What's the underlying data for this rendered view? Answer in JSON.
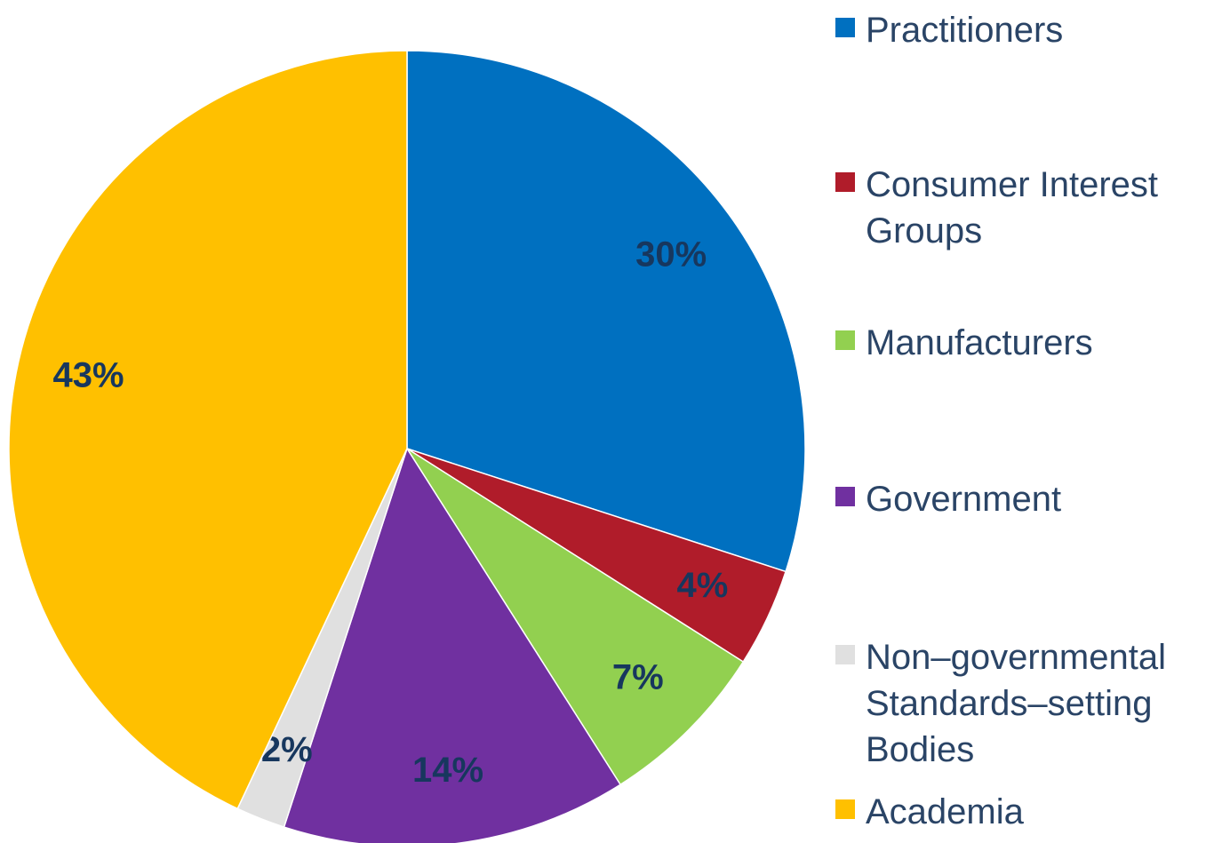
{
  "chart_data": {
    "type": "pie",
    "categories": [
      "Practitioners",
      "Consumer Interest Groups",
      "Manufacturers",
      "Government",
      "Non–governmental Standards–setting Bodies",
      "Academia"
    ],
    "values": [
      30,
      4,
      7,
      14,
      2,
      43
    ],
    "value_labels": [
      "30%",
      "4%",
      "7%",
      "14%",
      "2%",
      "43%"
    ],
    "colors": [
      "#0070c0",
      "#b01c2a",
      "#92d050",
      "#7030a0",
      "#e0e0e0",
      "#ffc000"
    ],
    "legend": "right"
  }
}
